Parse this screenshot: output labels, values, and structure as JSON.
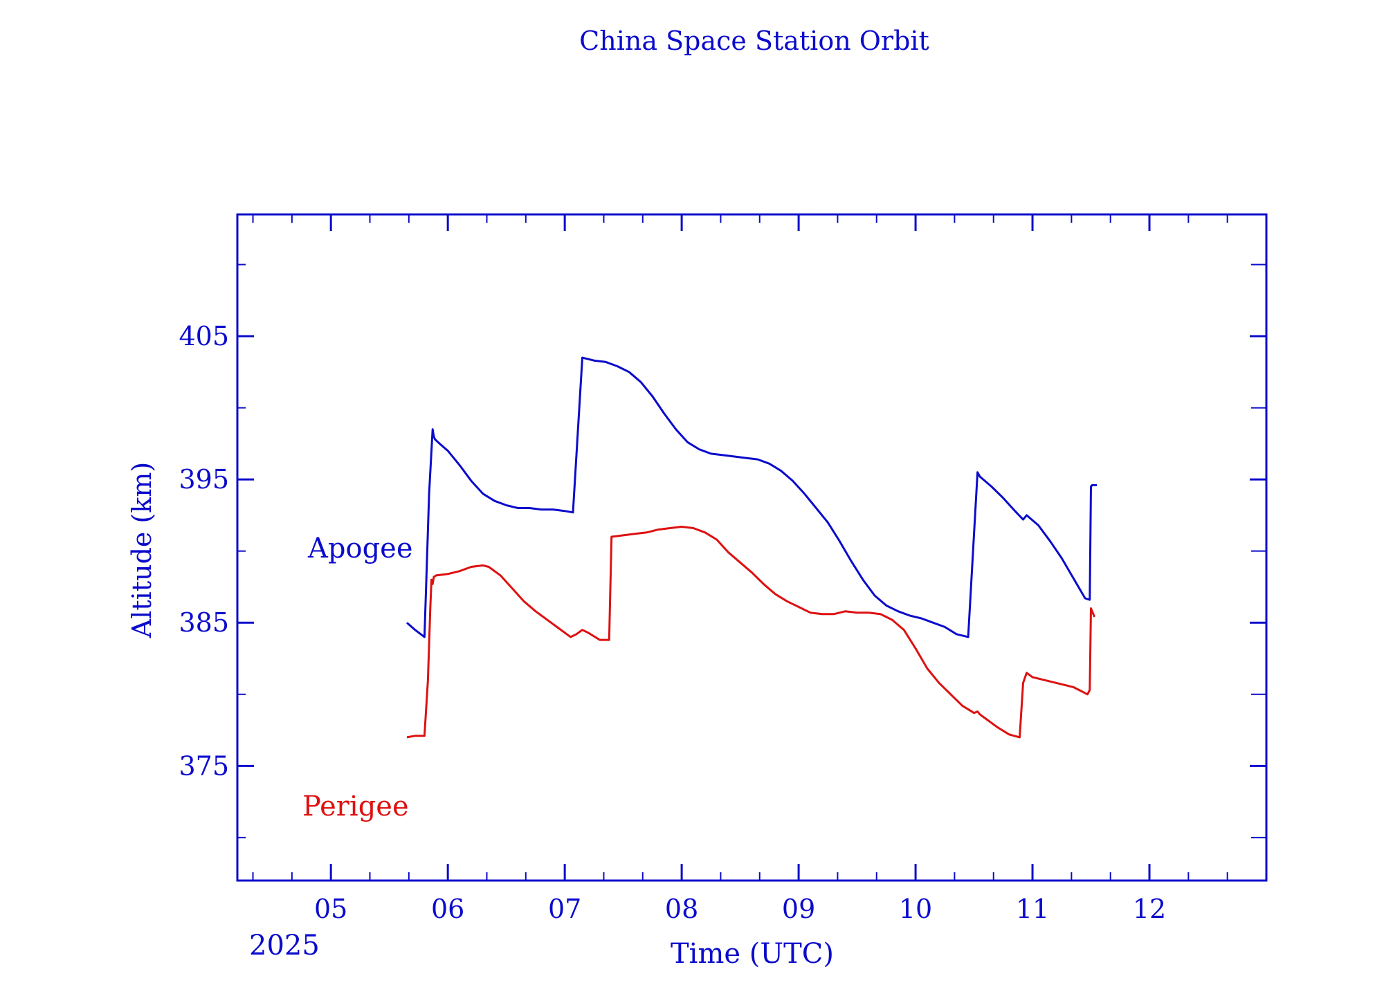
{
  "chart_data": {
    "type": "line",
    "title": "China Space Station Orbit",
    "xlabel": "Time (UTC)",
    "ylabel": "Altitude (km)",
    "year_label": "2025",
    "xlim": [
      4.2,
      13.0
    ],
    "ylim": [
      367.0,
      413.5
    ],
    "x_ticks": [
      {
        "value": 5,
        "label": "05"
      },
      {
        "value": 6,
        "label": "06"
      },
      {
        "value": 7,
        "label": "07"
      },
      {
        "value": 8,
        "label": "08"
      },
      {
        "value": 9,
        "label": "09"
      },
      {
        "value": 10,
        "label": "10"
      },
      {
        "value": 11,
        "label": "11"
      },
      {
        "value": 12,
        "label": "12"
      }
    ],
    "y_ticks": [
      {
        "value": 375,
        "label": "375"
      },
      {
        "value": 385,
        "label": "385"
      },
      {
        "value": 395,
        "label": "395"
      },
      {
        "value": 405,
        "label": "405"
      }
    ],
    "grid": false,
    "colors": {
      "axis": "#0b0bcc",
      "apogee": "#0b0bcc",
      "perigee": "#dd1111"
    },
    "series": [
      {
        "name": "Apogee",
        "color": "#0b0bcc",
        "x": [
          5.65,
          5.72,
          5.8,
          5.84,
          5.87,
          5.88,
          5.89,
          5.93,
          6.0,
          6.1,
          6.2,
          6.3,
          6.4,
          6.5,
          6.6,
          6.7,
          6.8,
          6.9,
          7.0,
          7.07,
          7.15,
          7.25,
          7.35,
          7.45,
          7.55,
          7.65,
          7.75,
          7.85,
          7.95,
          8.05,
          8.15,
          8.25,
          8.35,
          8.45,
          8.55,
          8.65,
          8.75,
          8.85,
          8.95,
          9.05,
          9.15,
          9.25,
          9.35,
          9.45,
          9.55,
          9.65,
          9.75,
          9.85,
          9.95,
          10.05,
          10.15,
          10.25,
          10.35,
          10.45,
          10.53,
          10.55,
          10.65,
          10.75,
          10.85,
          10.92,
          10.95,
          11.05,
          11.15,
          11.25,
          11.35,
          11.45,
          11.49,
          11.5,
          11.51,
          11.55
        ],
        "values": [
          385.0,
          384.5,
          384.0,
          394.0,
          398.5,
          398.0,
          397.8,
          397.5,
          397.0,
          396.0,
          394.9,
          394.0,
          393.5,
          393.2,
          393.0,
          393.0,
          392.9,
          392.9,
          392.8,
          392.7,
          403.5,
          403.3,
          403.2,
          402.9,
          402.5,
          401.8,
          400.8,
          399.6,
          398.5,
          397.6,
          397.1,
          396.8,
          396.7,
          396.6,
          396.5,
          396.4,
          396.1,
          395.6,
          394.9,
          394.0,
          393.0,
          392.0,
          390.7,
          389.3,
          388.0,
          386.9,
          386.2,
          385.8,
          385.5,
          385.3,
          385.0,
          384.7,
          384.2,
          384.0,
          395.5,
          395.2,
          394.5,
          393.7,
          392.8,
          392.2,
          392.5,
          391.8,
          390.7,
          389.5,
          388.1,
          386.7,
          386.6,
          394.5,
          394.6,
          394.6
        ]
      },
      {
        "name": "Perigee",
        "color": "#dd1111",
        "x": [
          5.65,
          5.72,
          5.8,
          5.83,
          5.85,
          5.86,
          5.87,
          5.88,
          5.9,
          6.0,
          6.1,
          6.2,
          6.3,
          6.35,
          6.45,
          6.55,
          6.65,
          6.75,
          6.85,
          6.95,
          7.05,
          7.1,
          7.15,
          7.2,
          7.3,
          7.38,
          7.4,
          7.5,
          7.6,
          7.7,
          7.8,
          7.9,
          8.0,
          8.1,
          8.2,
          8.3,
          8.4,
          8.5,
          8.6,
          8.7,
          8.8,
          8.9,
          9.0,
          9.1,
          9.2,
          9.3,
          9.4,
          9.5,
          9.6,
          9.7,
          9.8,
          9.9,
          10.0,
          10.1,
          10.2,
          10.3,
          10.4,
          10.5,
          10.53,
          10.55,
          10.6,
          10.7,
          10.8,
          10.89,
          10.92,
          10.95,
          11.0,
          11.1,
          11.2,
          11.3,
          11.35,
          11.4,
          11.47,
          11.49,
          11.5,
          11.53
        ],
        "values": [
          377.0,
          377.1,
          377.1,
          381.0,
          386.0,
          388.0,
          387.7,
          388.2,
          388.3,
          388.4,
          388.6,
          388.9,
          389.0,
          388.9,
          388.3,
          387.4,
          386.5,
          385.8,
          385.2,
          384.6,
          384.0,
          384.2,
          384.5,
          384.3,
          383.8,
          383.8,
          391.0,
          391.1,
          391.2,
          391.3,
          391.5,
          391.6,
          391.7,
          391.6,
          391.3,
          390.8,
          389.9,
          389.2,
          388.5,
          387.7,
          387.0,
          386.5,
          386.1,
          385.7,
          385.6,
          385.6,
          385.8,
          385.7,
          385.7,
          385.6,
          385.2,
          384.5,
          383.2,
          381.8,
          380.8,
          380.0,
          379.2,
          378.7,
          378.8,
          378.6,
          378.3,
          377.7,
          377.2,
          377.0,
          380.8,
          381.5,
          381.2,
          381.0,
          380.8,
          380.6,
          380.5,
          380.3,
          380.0,
          380.3,
          386.0,
          385.4
        ]
      }
    ],
    "annotations": [
      {
        "text": "Apogee",
        "series": "Apogee"
      },
      {
        "text": "Perigee",
        "series": "Perigee"
      }
    ]
  }
}
